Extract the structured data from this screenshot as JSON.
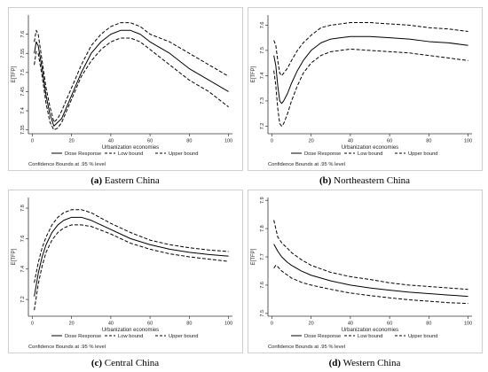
{
  "figure": {
    "legend_labels": [
      "Dose Response",
      "Low bound",
      "Upper bound"
    ],
    "note": "Confidence Bounds at .95 % level",
    "colors": {
      "line": "#000000",
      "frame": "#cfcfcf"
    }
  },
  "chart_data": [
    {
      "type": "line",
      "panel_letter": "(a)",
      "caption": "Eastern China",
      "xlabel": "Urbanization economies",
      "ylabel": "E[TFP]",
      "xlim": [
        -2,
        102
      ],
      "ylim": [
        7.34,
        7.65
      ],
      "xticks": [
        0,
        20,
        40,
        60,
        80,
        100
      ],
      "yticks": [
        7.35,
        7.4,
        7.45,
        7.5,
        7.55,
        7.6
      ],
      "ytick_labels": [
        "7.35",
        "7.4",
        "7.45",
        "7.5",
        "7.55",
        "7.6"
      ],
      "grid": false,
      "legend": "bottom",
      "series": [
        {
          "name": "Dose Response",
          "style": "solid",
          "x": [
            1,
            2,
            3,
            5,
            7,
            9,
            11,
            13,
            15,
            20,
            25,
            30,
            35,
            40,
            45,
            50,
            55,
            60,
            70,
            80,
            90,
            100
          ],
          "y": [
            7.55,
            7.58,
            7.57,
            7.51,
            7.44,
            7.39,
            7.36,
            7.37,
            7.38,
            7.44,
            7.5,
            7.55,
            7.58,
            7.6,
            7.61,
            7.61,
            7.6,
            7.58,
            7.55,
            7.51,
            7.48,
            7.45
          ]
        },
        {
          "name": "Low bound",
          "style": "dashed",
          "x": [
            1,
            2,
            3,
            5,
            7,
            9,
            11,
            13,
            15,
            20,
            25,
            30,
            35,
            40,
            45,
            50,
            55,
            60,
            70,
            80,
            90,
            100
          ],
          "y": [
            7.52,
            7.555,
            7.55,
            7.49,
            7.42,
            7.37,
            7.35,
            7.355,
            7.37,
            7.43,
            7.49,
            7.53,
            7.56,
            7.58,
            7.59,
            7.59,
            7.58,
            7.56,
            7.52,
            7.48,
            7.45,
            7.41
          ]
        },
        {
          "name": "Upper bound",
          "style": "dashed",
          "x": [
            1,
            2,
            3,
            5,
            7,
            9,
            11,
            13,
            15,
            20,
            25,
            30,
            35,
            40,
            45,
            50,
            55,
            60,
            70,
            80,
            90,
            100
          ],
          "y": [
            7.58,
            7.61,
            7.6,
            7.53,
            7.46,
            7.41,
            7.37,
            7.38,
            7.4,
            7.46,
            7.52,
            7.57,
            7.6,
            7.62,
            7.63,
            7.63,
            7.62,
            7.6,
            7.58,
            7.55,
            7.52,
            7.49
          ]
        }
      ]
    },
    {
      "type": "line",
      "panel_letter": "(b)",
      "caption": "Northeastern China",
      "xlabel": "Urbanization economies",
      "ylabel": "E[TFP]",
      "xlim": [
        -2,
        102
      ],
      "ylim": [
        7.17,
        7.64
      ],
      "xticks": [
        0,
        20,
        40,
        60,
        80,
        100
      ],
      "yticks": [
        7.2,
        7.3,
        7.4,
        7.5,
        7.6
      ],
      "ytick_labels": [
        "7.2",
        "7.3",
        "7.4",
        "7.5",
        "7.6"
      ],
      "grid": false,
      "legend": "bottom",
      "series": [
        {
          "name": "Dose Response",
          "style": "solid",
          "x": [
            1,
            2,
            3,
            4,
            5,
            6,
            8,
            10,
            13,
            16,
            20,
            25,
            30,
            40,
            50,
            60,
            70,
            80,
            90,
            100
          ],
          "y": [
            7.48,
            7.44,
            7.36,
            7.3,
            7.29,
            7.3,
            7.33,
            7.37,
            7.42,
            7.46,
            7.5,
            7.53,
            7.545,
            7.555,
            7.555,
            7.55,
            7.545,
            7.535,
            7.53,
            7.52
          ]
        },
        {
          "name": "Low bound",
          "style": "dashed",
          "x": [
            1,
            2,
            3,
            4,
            5,
            6,
            8,
            10,
            13,
            16,
            20,
            25,
            30,
            40,
            50,
            60,
            70,
            80,
            90,
            100
          ],
          "y": [
            7.42,
            7.36,
            7.27,
            7.21,
            7.2,
            7.21,
            7.25,
            7.3,
            7.36,
            7.41,
            7.45,
            7.48,
            7.495,
            7.505,
            7.5,
            7.495,
            7.49,
            7.48,
            7.47,
            7.46
          ]
        },
        {
          "name": "Upper bound",
          "style": "dashed",
          "x": [
            1,
            2,
            3,
            4,
            5,
            6,
            8,
            10,
            13,
            16,
            20,
            25,
            30,
            40,
            50,
            60,
            70,
            80,
            90,
            100
          ],
          "y": [
            7.54,
            7.52,
            7.46,
            7.41,
            7.4,
            7.41,
            7.43,
            7.46,
            7.5,
            7.53,
            7.56,
            7.59,
            7.6,
            7.61,
            7.61,
            7.605,
            7.6,
            7.59,
            7.585,
            7.575
          ]
        }
      ]
    },
    {
      "type": "line",
      "panel_letter": "(c)",
      "caption": "Central China",
      "xlabel": "Urbanization economies",
      "ylabel": "E[TFP]",
      "xlim": [
        -2,
        102
      ],
      "ylim": [
        7.09,
        7.87
      ],
      "xticks": [
        0,
        20,
        40,
        60,
        80,
        100
      ],
      "yticks": [
        7.2,
        7.4,
        7.6,
        7.8
      ],
      "ytick_labels": [
        "7.2",
        "7.4",
        "7.6",
        "7.8"
      ],
      "grid": false,
      "legend": "bottom",
      "series": [
        {
          "name": "Dose Response",
          "style": "solid",
          "x": [
            1,
            3,
            5,
            7,
            10,
            13,
            16,
            20,
            25,
            30,
            40,
            50,
            60,
            70,
            80,
            90,
            100
          ],
          "y": [
            7.22,
            7.37,
            7.48,
            7.56,
            7.64,
            7.69,
            7.72,
            7.74,
            7.74,
            7.72,
            7.66,
            7.6,
            7.56,
            7.53,
            7.51,
            7.495,
            7.485
          ]
        },
        {
          "name": "Low bound",
          "style": "dashed",
          "x": [
            1,
            3,
            5,
            7,
            10,
            13,
            16,
            20,
            25,
            30,
            40,
            50,
            60,
            70,
            80,
            90,
            100
          ],
          "y": [
            7.13,
            7.3,
            7.42,
            7.51,
            7.59,
            7.64,
            7.67,
            7.69,
            7.69,
            7.68,
            7.63,
            7.57,
            7.53,
            7.5,
            7.48,
            7.465,
            7.45
          ]
        },
        {
          "name": "Upper bound",
          "style": "dashed",
          "x": [
            1,
            3,
            5,
            7,
            10,
            13,
            16,
            20,
            25,
            30,
            40,
            50,
            60,
            70,
            80,
            90,
            100
          ],
          "y": [
            7.31,
            7.44,
            7.54,
            7.61,
            7.69,
            7.74,
            7.77,
            7.79,
            7.79,
            7.77,
            7.7,
            7.64,
            7.59,
            7.56,
            7.54,
            7.525,
            7.515
          ]
        }
      ]
    },
    {
      "type": "line",
      "panel_letter": "(d)",
      "caption": "Western China",
      "xlabel": "Urbanization economies",
      "ylabel": "E[TFP]",
      "xlim": [
        -2,
        102
      ],
      "ylim": [
        7.49,
        7.91
      ],
      "xticks": [
        0,
        20,
        40,
        60,
        80,
        100
      ],
      "yticks": [
        7.5,
        7.6,
        7.7,
        7.8,
        7.9
      ],
      "ytick_labels": [
        "7.5",
        "7.6",
        "7.7",
        "7.8",
        "7.9"
      ],
      "grid": false,
      "legend": "bottom",
      "series": [
        {
          "name": "Dose Response",
          "style": "solid",
          "x": [
            1,
            3,
            5,
            8,
            10,
            15,
            20,
            30,
            40,
            50,
            60,
            70,
            80,
            90,
            100
          ],
          "y": [
            7.745,
            7.72,
            7.7,
            7.68,
            7.67,
            7.65,
            7.635,
            7.615,
            7.6,
            7.59,
            7.582,
            7.575,
            7.57,
            7.565,
            7.56
          ]
        },
        {
          "name": "Low bound",
          "style": "dashed",
          "x": [
            1,
            2,
            3,
            5,
            8,
            10,
            15,
            20,
            30,
            40,
            50,
            60,
            70,
            80,
            90,
            100
          ],
          "y": [
            7.66,
            7.67,
            7.665,
            7.65,
            7.635,
            7.625,
            7.61,
            7.6,
            7.585,
            7.572,
            7.563,
            7.555,
            7.548,
            7.543,
            7.538,
            7.535
          ]
        },
        {
          "name": "Upper bound",
          "style": "dashed",
          "x": [
            1,
            3,
            5,
            8,
            10,
            15,
            20,
            30,
            40,
            50,
            60,
            70,
            80,
            90,
            100
          ],
          "y": [
            7.83,
            7.77,
            7.75,
            7.73,
            7.715,
            7.69,
            7.67,
            7.645,
            7.63,
            7.62,
            7.608,
            7.6,
            7.595,
            7.59,
            7.585
          ]
        }
      ]
    }
  ]
}
